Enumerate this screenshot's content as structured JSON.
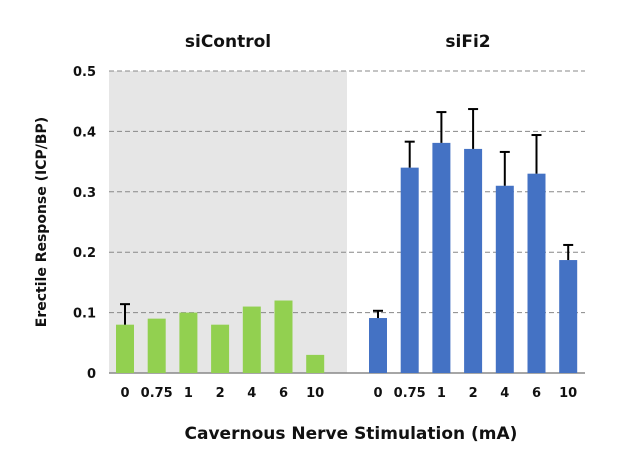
{
  "chart_data": {
    "type": "bar",
    "title": "",
    "xlabel": "Cavernous Nerve Stimulation (mA)",
    "ylabel": "Erectile Response (ICP/BP)",
    "ylim": [
      0,
      0.5
    ],
    "yticks": [
      "0",
      "0.1",
      "0.2",
      "0.3",
      "0.4",
      "0.5"
    ],
    "ytick_values": [
      0,
      0.1,
      0.2,
      0.3,
      0.4,
      0.5
    ],
    "grid": true,
    "categories": [
      "0",
      "0.75",
      "1",
      "2",
      "4",
      "6",
      "10"
    ],
    "series": [
      {
        "name": "siControl",
        "color": "#92d050",
        "background": "#e6e6e6",
        "values": [
          0.08,
          0.09,
          0.1,
          0.08,
          0.11,
          0.12,
          0.03
        ],
        "error_upper": [
          0.114,
          null,
          null,
          null,
          null,
          null,
          null
        ]
      },
      {
        "name": "siFi2",
        "color": "#4472c4",
        "background": "#ffffff",
        "values": [
          0.091,
          0.34,
          0.381,
          0.371,
          0.31,
          0.33,
          0.187
        ],
        "error_upper": [
          0.103,
          0.383,
          0.432,
          0.437,
          0.366,
          0.394,
          0.212
        ]
      }
    ]
  }
}
